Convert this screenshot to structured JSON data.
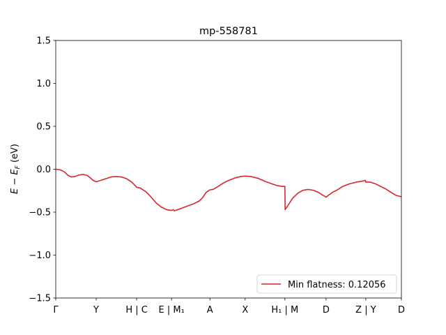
{
  "chart_data": {
    "type": "line",
    "title": "mp-558781",
    "ylabel": "E − E_F (eV)",
    "xlabel": "",
    "ylim": [
      -1.5,
      1.5
    ],
    "yticks": [
      -1.5,
      -1.0,
      -0.5,
      0.0,
      0.5,
      1.0,
      1.5
    ],
    "ytick_labels": [
      "−1.5",
      "−1.0",
      "−0.5",
      "0.0",
      "0.5",
      "1.0",
      "1.5"
    ],
    "xlim": [
      0,
      1
    ],
    "xticks": [
      {
        "pos": 0.0,
        "label": "Γ"
      },
      {
        "pos": 0.117,
        "label": "Y"
      },
      {
        "pos": 0.234,
        "label": "H | C"
      },
      {
        "pos": 0.335,
        "label": "E | M₁"
      },
      {
        "pos": 0.446,
        "label": "A"
      },
      {
        "pos": 0.548,
        "label": "X"
      },
      {
        "pos": 0.663,
        "label": "H₁ | M"
      },
      {
        "pos": 0.782,
        "label": "D"
      },
      {
        "pos": 0.897,
        "label": "Z | Y"
      },
      {
        "pos": 1.0,
        "label": "D"
      }
    ],
    "series": [
      {
        "name": "Min flatness: 0.12056",
        "color": "#d62728",
        "points": [
          [
            0.0,
            0.0
          ],
          [
            0.012,
            -0.005
          ],
          [
            0.025,
            -0.03
          ],
          [
            0.035,
            -0.07
          ],
          [
            0.045,
            -0.09
          ],
          [
            0.055,
            -0.085
          ],
          [
            0.065,
            -0.07
          ],
          [
            0.078,
            -0.06
          ],
          [
            0.09,
            -0.07
          ],
          [
            0.1,
            -0.1
          ],
          [
            0.108,
            -0.13
          ],
          [
            0.117,
            -0.145
          ],
          [
            0.13,
            -0.13
          ],
          [
            0.145,
            -0.11
          ],
          [
            0.16,
            -0.09
          ],
          [
            0.175,
            -0.085
          ],
          [
            0.19,
            -0.09
          ],
          [
            0.205,
            -0.11
          ],
          [
            0.22,
            -0.15
          ],
          [
            0.232,
            -0.2
          ],
          [
            0.234,
            -0.21
          ],
          [
            0.245,
            -0.22
          ],
          [
            0.26,
            -0.26
          ],
          [
            0.275,
            -0.32
          ],
          [
            0.29,
            -0.39
          ],
          [
            0.305,
            -0.44
          ],
          [
            0.32,
            -0.47
          ],
          [
            0.335,
            -0.48
          ],
          [
            0.34,
            -0.47
          ],
          [
            0.343,
            -0.485
          ],
          [
            0.36,
            -0.46
          ],
          [
            0.38,
            -0.43
          ],
          [
            0.4,
            -0.4
          ],
          [
            0.415,
            -0.37
          ],
          [
            0.425,
            -0.33
          ],
          [
            0.435,
            -0.27
          ],
          [
            0.446,
            -0.24
          ],
          [
            0.455,
            -0.235
          ],
          [
            0.47,
            -0.2
          ],
          [
            0.485,
            -0.16
          ],
          [
            0.5,
            -0.13
          ],
          [
            0.52,
            -0.1
          ],
          [
            0.535,
            -0.085
          ],
          [
            0.548,
            -0.08
          ],
          [
            0.565,
            -0.085
          ],
          [
            0.585,
            -0.105
          ],
          [
            0.605,
            -0.14
          ],
          [
            0.625,
            -0.17
          ],
          [
            0.64,
            -0.19
          ],
          [
            0.655,
            -0.2
          ],
          [
            0.662,
            -0.2
          ],
          [
            0.663,
            -0.2
          ],
          [
            0.6635,
            -0.47
          ],
          [
            0.672,
            -0.42
          ],
          [
            0.685,
            -0.34
          ],
          [
            0.7,
            -0.28
          ],
          [
            0.715,
            -0.245
          ],
          [
            0.73,
            -0.235
          ],
          [
            0.745,
            -0.245
          ],
          [
            0.76,
            -0.27
          ],
          [
            0.772,
            -0.3
          ],
          [
            0.782,
            -0.325
          ],
          [
            0.79,
            -0.3
          ],
          [
            0.8,
            -0.27
          ],
          [
            0.815,
            -0.24
          ],
          [
            0.83,
            -0.2
          ],
          [
            0.85,
            -0.17
          ],
          [
            0.87,
            -0.15
          ],
          [
            0.885,
            -0.14
          ],
          [
            0.896,
            -0.13
          ],
          [
            0.897,
            -0.15
          ],
          [
            0.91,
            -0.15
          ],
          [
            0.925,
            -0.17
          ],
          [
            0.94,
            -0.2
          ],
          [
            0.955,
            -0.23
          ],
          [
            0.97,
            -0.27
          ],
          [
            0.985,
            -0.305
          ],
          [
            1.0,
            -0.32
          ]
        ]
      }
    ],
    "legend": {
      "position": "lower-right"
    }
  }
}
